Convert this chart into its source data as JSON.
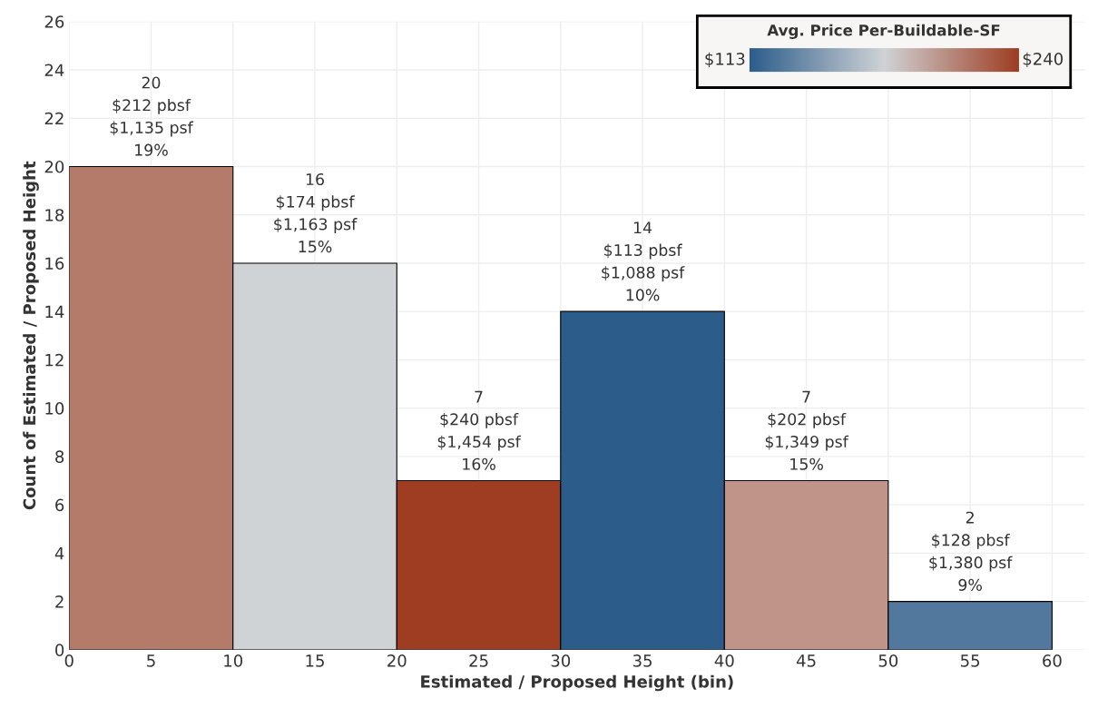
{
  "chart_data": {
    "type": "histogram",
    "xlabel": "Estimated / Proposed Height (bin)",
    "ylabel": "Count of Estimated / Proposed Height",
    "bins": [
      0,
      10,
      20,
      30,
      40,
      50,
      60
    ],
    "values": [
      20,
      16,
      7,
      14,
      7,
      2
    ],
    "value_labels": [
      "20\n$212 pbsf\n$1,135 psf\n19%",
      "16\n$174 pbsf\n$1,163 psf\n15%",
      "7\n$240 pbsf\n$1,454 psf\n16%",
      "14\n$113 pbsf\n$1,088 psf\n10%",
      "7\n$202 pbsf\n$1,349 psf\n15%",
      "2\n$128 pbsf\n$1,380 psf\n9%"
    ],
    "clabel": "Avg. Price Per-Buildable-SF",
    "annotations": [
      "$113",
      "$240"
    ],
    "colors": [
      "#b57b6a",
      "#d0d3d6",
      "#9e3d22",
      "#2c5d8a",
      "#c09488",
      "#52789e"
    ],
    "xlim": [
      0,
      62
    ],
    "xticks": [
      0,
      5,
      10,
      15,
      20,
      25,
      30,
      35,
      40,
      45,
      50,
      55,
      60
    ],
    "ylim": [
      0,
      26
    ],
    "yticks": [
      0,
      2,
      4,
      6,
      8,
      10,
      12,
      14,
      16,
      18,
      20,
      22,
      24,
      26
    ],
    "grid": true
  }
}
